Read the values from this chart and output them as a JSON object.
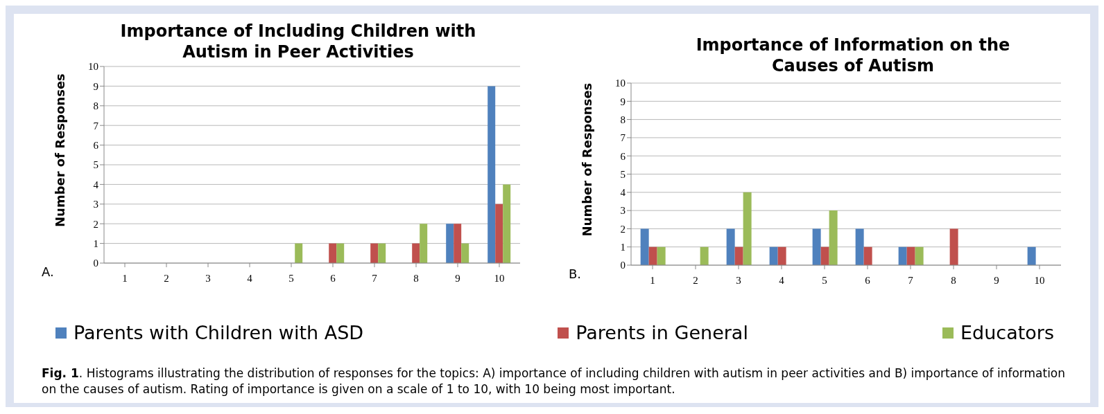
{
  "chart_data": [
    {
      "type": "bar",
      "title": "Importance of Including Children with Autism in Peer Activities",
      "ylabel": "Number of Responses",
      "categories": [
        "1",
        "2",
        "3",
        "4",
        "5",
        "6",
        "7",
        "8",
        "9",
        "10"
      ],
      "series": [
        {
          "name": "Parents with Children with ASD",
          "color": "#4f81bd",
          "values": [
            0,
            0,
            0,
            0,
            0,
            0,
            0,
            0,
            2,
            9
          ]
        },
        {
          "name": "Parents in General",
          "color": "#c0504d",
          "values": [
            0,
            0,
            0,
            0,
            0,
            1,
            1,
            1,
            2,
            3
          ]
        },
        {
          "name": "Educators",
          "color": "#9bbb59",
          "values": [
            0,
            0,
            0,
            0,
            1,
            1,
            1,
            2,
            1,
            4
          ]
        }
      ],
      "ylim": [
        0,
        10
      ],
      "yticks": [
        0,
        1,
        2,
        3,
        4,
        5,
        6,
        7,
        8,
        9,
        10
      ],
      "grid": "y",
      "legend": "bottom",
      "annotations": [
        "A.",
        "Fig. 1",
        ". Histograms illustrating the distribution of responses for the topics: A) importance of including children with autism in peer activities and B) importance of information on the causes of autism. Rating of importance is given on a scale of 1 to 10, with 10 being most important."
      ]
    },
    {
      "type": "bar",
      "title": "Importance of Information on the Causes of Autism",
      "ylabel": "Number of Responses",
      "categories": [
        "1",
        "2",
        "3",
        "4",
        "5",
        "6",
        "7",
        "8",
        "9",
        "10"
      ],
      "series": [
        {
          "color": "#4f81bd",
          "values": [
            2,
            0,
            2,
            1,
            2,
            2,
            1,
            0,
            0,
            1
          ]
        },
        {
          "color": "#c0504d",
          "values": [
            1,
            0,
            1,
            1,
            1,
            1,
            1,
            2,
            0,
            0
          ]
        },
        {
          "color": "#9bbb59",
          "values": [
            1,
            1,
            4,
            0,
            3,
            0,
            1,
            0,
            0,
            0
          ]
        }
      ],
      "ylim": [
        0,
        10
      ],
      "yticks": [
        0,
        1,
        2,
        3,
        4,
        5,
        6,
        7,
        8,
        9,
        10
      ],
      "grid": "y",
      "annotations": [
        "B."
      ]
    }
  ]
}
